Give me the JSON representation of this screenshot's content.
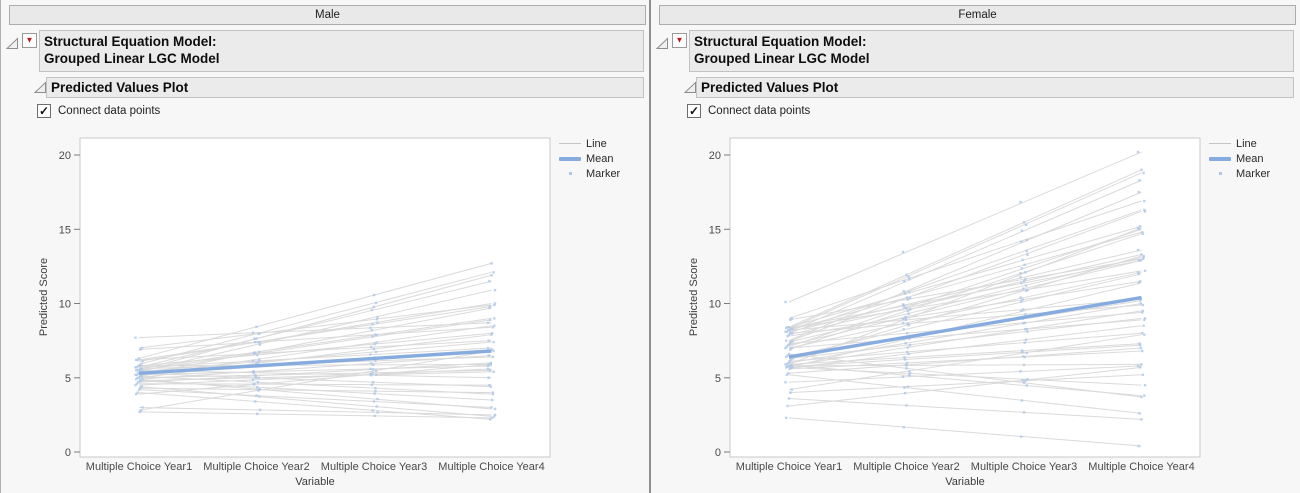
{
  "panels": [
    {
      "group_label": "Male",
      "outline_title_line1": "Structural Equation Model:",
      "outline_title_line2": "Grouped Linear LGC Model",
      "section_title": "Predicted Values Plot",
      "checkbox_label": "Connect data points",
      "checkbox_checked": true
    },
    {
      "group_label": "Female",
      "outline_title_line1": "Structural Equation Model:",
      "outline_title_line2": "Grouped Linear LGC Model",
      "section_title": "Predicted Values Plot",
      "checkbox_label": "Connect data points",
      "checkbox_checked": true
    }
  ],
  "legend": {
    "items": [
      {
        "label": "Line"
      },
      {
        "label": "Mean"
      },
      {
        "label": "Marker"
      }
    ]
  },
  "icons": {
    "checkmark": "✓",
    "red_triangle": "▼"
  },
  "colors": {
    "mean_line": "#86acdf",
    "marker": "#aec8e6",
    "subject_line": "#dadada",
    "plot_frame": "#c8c8c8",
    "panel_bg": "#f7f7f7",
    "header_fill": "#ebebeb",
    "red_triangle": "#c41212"
  },
  "chart_data": [
    {
      "type": "line",
      "group": "Male",
      "xlabel": "Variable",
      "ylabel": "Predicted Score",
      "categories": [
        "Multiple Choice Year1",
        "Multiple Choice Year2",
        "Multiple Choice Year3",
        "Multiple Choice Year4"
      ],
      "ylim": [
        0,
        20
      ],
      "yticks": [
        0,
        5,
        10,
        15,
        20
      ],
      "grid": false,
      "legend_position": "right-top",
      "mean": [
        5.3,
        6.8
      ],
      "subjects": [
        [
          7.7,
          8.7
        ],
        [
          7.0,
          9.9
        ],
        [
          6.9,
          8.4
        ],
        [
          6.3,
          12.7
        ],
        [
          6.2,
          9.8
        ],
        [
          6.2,
          7.5
        ],
        [
          6.1,
          10.0
        ],
        [
          5.9,
          12.1
        ],
        [
          5.8,
          8.0
        ],
        [
          5.8,
          5.9
        ],
        [
          5.7,
          11.5
        ],
        [
          5.7,
          7.0
        ],
        [
          5.6,
          9.0
        ],
        [
          5.6,
          6.4
        ],
        [
          5.5,
          11.9
        ],
        [
          5.5,
          8.9
        ],
        [
          5.5,
          5.0
        ],
        [
          5.4,
          10.9
        ],
        [
          5.4,
          7.4
        ],
        [
          5.3,
          6.9
        ],
        [
          5.3,
          4.4
        ],
        [
          5.2,
          9.7
        ],
        [
          5.2,
          5.8
        ],
        [
          5.1,
          8.5
        ],
        [
          5.1,
          3.9
        ],
        [
          5.0,
          7.9
        ],
        [
          5.0,
          5.5
        ],
        [
          4.9,
          6.5
        ],
        [
          4.9,
          2.9
        ],
        [
          4.8,
          5.4
        ],
        [
          4.8,
          3.5
        ],
        [
          4.7,
          6.0
        ],
        [
          4.6,
          4.5
        ],
        [
          4.5,
          5.6
        ],
        [
          4.4,
          2.4
        ],
        [
          4.3,
          4.0
        ],
        [
          4.2,
          3.0
        ],
        [
          4.0,
          2.2
        ],
        [
          3.9,
          5.9
        ],
        [
          3.0,
          2.5
        ],
        [
          2.8,
          6.8
        ],
        [
          2.7,
          2.3
        ]
      ]
    },
    {
      "type": "line",
      "group": "Female",
      "xlabel": "Variable",
      "ylabel": "Predicted Score",
      "categories": [
        "Multiple Choice Year1",
        "Multiple Choice Year2",
        "Multiple Choice Year3",
        "Multiple Choice Year4"
      ],
      "ylim": [
        0,
        20
      ],
      "yticks": [
        0,
        5,
        10,
        15,
        20
      ],
      "grid": false,
      "legend_position": "right-top",
      "mean": [
        6.4,
        10.4
      ],
      "subjects": [
        [
          10.1,
          20.2
        ],
        [
          9.0,
          16.9
        ],
        [
          8.9,
          13.0
        ],
        [
          8.4,
          19.0
        ],
        [
          8.4,
          15.2
        ],
        [
          8.35,
          12.9
        ],
        [
          8.3,
          12.2
        ],
        [
          8.3,
          18.8
        ],
        [
          8.2,
          14.8
        ],
        [
          8.2,
          10.3
        ],
        [
          8.1,
          18.3
        ],
        [
          8.1,
          13.6
        ],
        [
          8.0,
          16.3
        ],
        [
          8.0,
          9.9
        ],
        [
          7.9,
          13.3
        ],
        [
          7.8,
          11.5
        ],
        [
          7.5,
          17.5
        ],
        [
          7.45,
          16.2
        ],
        [
          7.4,
          13.1
        ],
        [
          7.3,
          9.4
        ],
        [
          7.2,
          12.9
        ],
        [
          7.1,
          15.0
        ],
        [
          7.0,
          12.1
        ],
        [
          7.0,
          8.9
        ],
        [
          6.9,
          14.7
        ],
        [
          6.6,
          3.7
        ],
        [
          6.5,
          10.2
        ],
        [
          6.4,
          12.0
        ],
        [
          6.3,
          9.0
        ],
        [
          6.2,
          13.2
        ],
        [
          6.1,
          8.0
        ],
        [
          6.0,
          10.0
        ],
        [
          5.9,
          7.3
        ],
        [
          5.9,
          15.1
        ],
        [
          5.85,
          3.8
        ],
        [
          5.8,
          9.5
        ],
        [
          5.8,
          5.9
        ],
        [
          5.75,
          7.2
        ],
        [
          5.7,
          11.4
        ],
        [
          5.7,
          4.5
        ],
        [
          5.65,
          8.5
        ],
        [
          5.6,
          6.8
        ],
        [
          5.3,
          7.0
        ],
        [
          5.2,
          2.6
        ],
        [
          4.7,
          5.8
        ],
        [
          4.2,
          7.9
        ],
        [
          4.0,
          5.2
        ],
        [
          3.6,
          2.2
        ],
        [
          3.1,
          5.7
        ],
        [
          2.3,
          0.4
        ]
      ]
    }
  ]
}
